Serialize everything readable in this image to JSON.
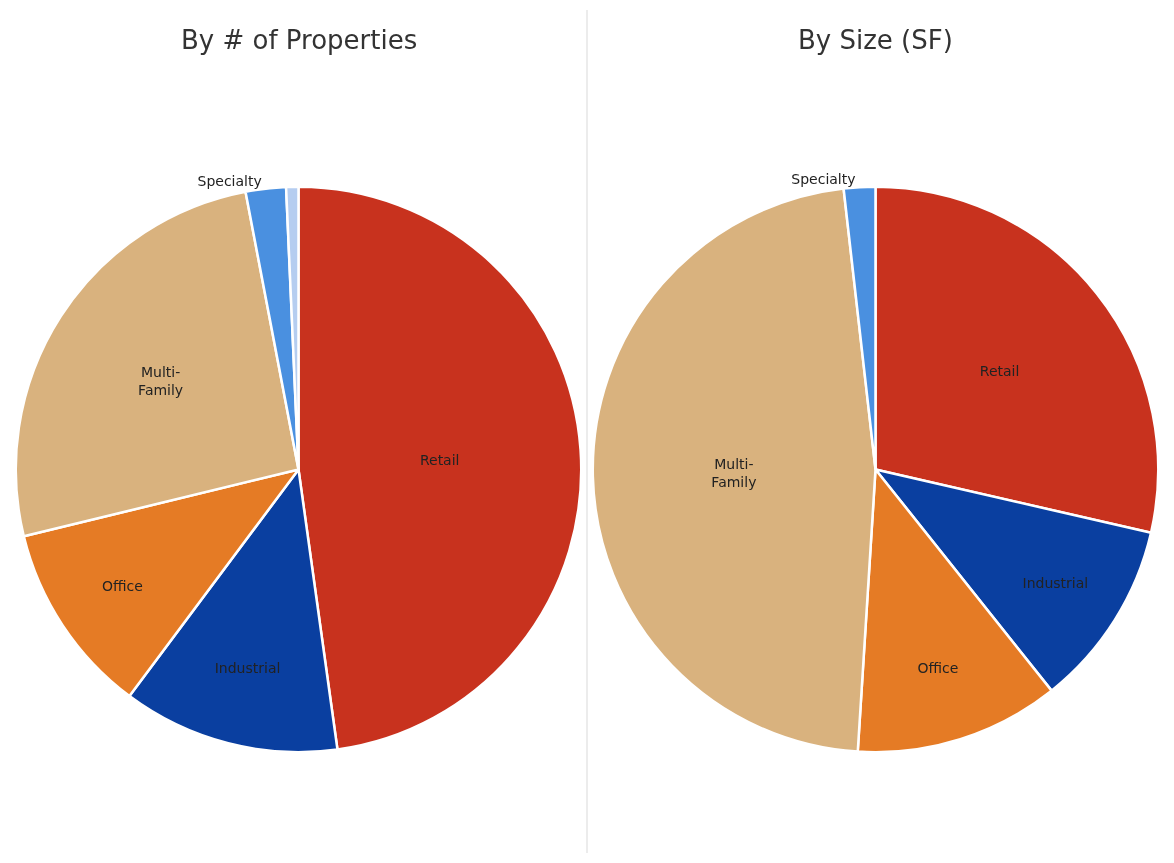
{
  "chart_data": [
    {
      "type": "pie",
      "title": "By # of Properties",
      "categories": [
        "Retail",
        "Industrial",
        "Office",
        "Multi-\nFamily",
        "Specialty",
        null
      ],
      "values": [
        47.8,
        12.4,
        11.0,
        25.8,
        2.3,
        0.7
      ],
      "colors": [
        "#c8321e",
        "#0a3fa0",
        "#e57b25",
        "#d9b27e",
        "#4a90e0",
        "#b5cdf0"
      ]
    },
    {
      "type": "pie",
      "title": "By Size (SF)",
      "categories": [
        "Retail",
        "Industrial",
        "Office",
        "Multi-\nFamily",
        "Specialty"
      ],
      "values": [
        28.6,
        10.7,
        11.7,
        47.2,
        1.8
      ],
      "colors": [
        "#c8321e",
        "#0a3fa0",
        "#e57b25",
        "#d9b27e",
        "#4a90e0"
      ]
    }
  ]
}
